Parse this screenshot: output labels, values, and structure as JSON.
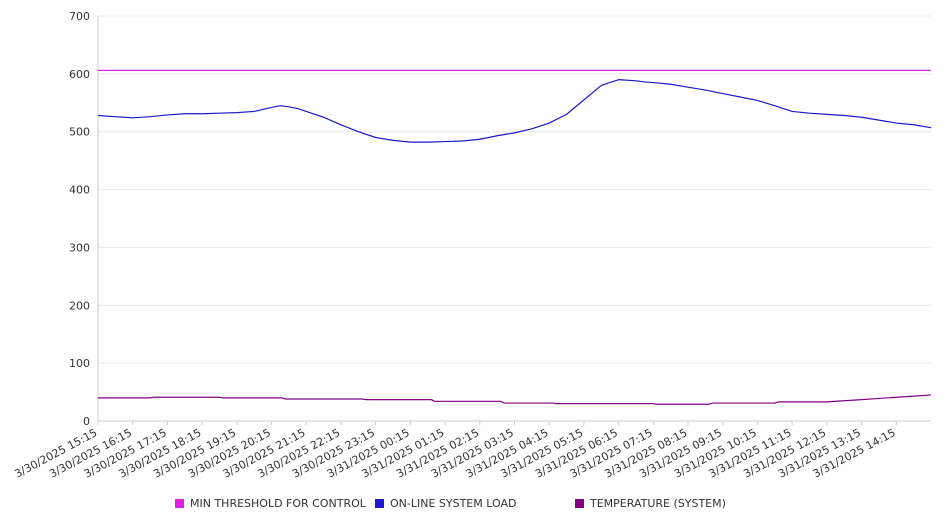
{
  "chart_data": {
    "type": "line",
    "ylim": [
      0,
      700
    ],
    "y_ticks": [
      0,
      100,
      200,
      300,
      400,
      500,
      600,
      700
    ],
    "x_tick_labels": [
      "3/30/2025 15:15",
      "3/30/2025 16:15",
      "3/30/2025 17:15",
      "3/30/2025 18:15",
      "3/30/2025 19:15",
      "3/30/2025 20:15",
      "3/30/2025 21:15",
      "3/30/2025 22:15",
      "3/30/2025 23:15",
      "3/31/2025 00:15",
      "3/31/2025 01:15",
      "3/31/2025 02:15",
      "3/31/2025 03:15",
      "3/31/2025 04:15",
      "3/31/2025 05:15",
      "3/31/2025 06:15",
      "3/31/2025 07:15",
      "3/31/2025 08:15",
      "3/31/2025 09:15",
      "3/31/2025 10:15",
      "3/31/2025 11:15",
      "3/31/2025 12:15",
      "3/31/2025 13:15",
      "3/31/2025 14:15"
    ],
    "x_extent_hours": 24,
    "grid": true,
    "legend_position": "bottom",
    "series": [
      {
        "name": "MIN THRESHOLD FOR CONTROL",
        "color": "#e020e0",
        "x": [
          0,
          24
        ],
        "y": [
          606,
          606
        ]
      },
      {
        "name": "ON-LINE SYSTEM LOAD",
        "color": "#1a1acc",
        "x": [
          0,
          0.5,
          1,
          1.5,
          2,
          2.5,
          3,
          3.5,
          4,
          4.5,
          5,
          5.25,
          5.5,
          5.75,
          6,
          6.5,
          7,
          7.5,
          8,
          8.5,
          9,
          9.5,
          10,
          10.5,
          11,
          11.5,
          12,
          12.5,
          13,
          13.5,
          14,
          14.5,
          15,
          15.5,
          15.75,
          16,
          16.5,
          17,
          17.5,
          18,
          18.5,
          19,
          19.5,
          20,
          20.5,
          21,
          21.5,
          22,
          22.5,
          23,
          23.5,
          24
        ],
        "y": [
          528,
          526,
          524,
          526,
          529,
          531,
          531,
          532,
          533,
          535,
          542,
          545,
          543,
          540,
          535,
          525,
          512,
          500,
          490,
          485,
          482,
          482,
          483,
          484,
          487,
          493,
          498,
          505,
          515,
          530,
          555,
          580,
          590,
          588,
          586,
          585,
          582,
          577,
          572,
          566,
          560,
          554,
          545,
          535,
          532,
          530,
          528,
          525,
          520,
          515,
          512,
          507
        ]
      },
      {
        "name": "TEMPERATURE (SYSTEM)",
        "color": "#800080",
        "x": [
          0,
          1.5,
          1.6,
          3.5,
          3.6,
          5.3,
          5.4,
          7.6,
          7.7,
          9.6,
          9.7,
          11.6,
          11.7,
          13.1,
          13.2,
          16,
          16.1,
          17.6,
          17.7,
          19.5,
          19.6,
          21,
          21.5,
          22,
          22.5,
          23,
          23.5,
          24
        ],
        "y": [
          40,
          40,
          41,
          41,
          40,
          40,
          38,
          38,
          37,
          37,
          34,
          34,
          31,
          31,
          30,
          30,
          29,
          29,
          31,
          31,
          33,
          33,
          35,
          37,
          39,
          41,
          43,
          45
        ]
      }
    ]
  }
}
